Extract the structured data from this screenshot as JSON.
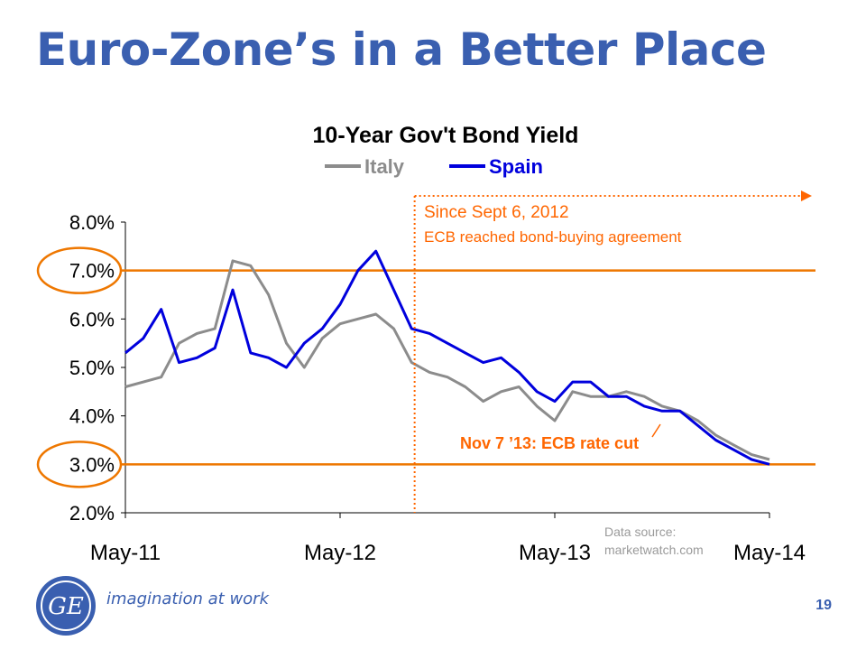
{
  "slide": {
    "title": "Euro-Zone’s in a Better Place",
    "tagline": "imagination at work",
    "page_number": "19",
    "logo_text": "GE"
  },
  "colors": {
    "title": "#3a5fb0",
    "italy": "#8c8c8c",
    "spain": "#0000dd",
    "annotation": "#ff6600",
    "reference_line": "#ee7700",
    "source": "#9a9a9a"
  },
  "icons": {
    "logo": "ge-monogram-icon",
    "arrow": "arrow-right-icon"
  },
  "chart_data": {
    "type": "line",
    "title": "10-Year Gov't Bond Yield",
    "legend_position": "top-center",
    "ylim": [
      2.0,
      8.0
    ],
    "yticks": [
      "2.0%",
      "3.0%",
      "4.0%",
      "5.0%",
      "6.0%",
      "7.0%",
      "8.0%"
    ],
    "xticks": [
      "May-11",
      "May-12",
      "May-13",
      "May-14"
    ],
    "x_range": [
      "2011-05",
      "2014-05"
    ],
    "grid": false,
    "reference_lines": [
      7.0,
      3.0
    ],
    "highlighted_ticks": [
      "7.0%",
      "3.0%"
    ],
    "series": [
      {
        "name": "Italy",
        "x": [
          "2011-05",
          "2011-07",
          "2011-08",
          "2011-09",
          "2011-10",
          "2011-11",
          "2011-12",
          "2012-01",
          "2012-02",
          "2012-03",
          "2012-04",
          "2012-05",
          "2012-06",
          "2012-07",
          "2012-08",
          "2012-09",
          "2012-10",
          "2012-11",
          "2012-12",
          "2013-01",
          "2013-02",
          "2013-03",
          "2013-04",
          "2013-05",
          "2013-06",
          "2013-07",
          "2013-08",
          "2013-09",
          "2013-10",
          "2013-11",
          "2013-12",
          "2014-01",
          "2014-02",
          "2014-03",
          "2014-04",
          "2014-05"
        ],
        "values": [
          4.6,
          4.8,
          5.5,
          5.7,
          5.8,
          7.2,
          7.1,
          6.5,
          5.5,
          5.0,
          5.6,
          5.9,
          6.0,
          6.1,
          5.8,
          5.1,
          4.9,
          4.8,
          4.6,
          4.3,
          4.5,
          4.6,
          4.2,
          3.9,
          4.5,
          4.4,
          4.4,
          4.5,
          4.4,
          4.2,
          4.1,
          3.9,
          3.6,
          3.4,
          3.2,
          3.1
        ]
      },
      {
        "name": "Spain",
        "x": [
          "2011-05",
          "2011-06",
          "2011-07",
          "2011-08",
          "2011-09",
          "2011-10",
          "2011-11",
          "2011-12",
          "2012-01",
          "2012-02",
          "2012-03",
          "2012-04",
          "2012-05",
          "2012-06",
          "2012-07",
          "2012-08",
          "2012-09",
          "2012-10",
          "2012-11",
          "2012-12",
          "2013-01",
          "2013-02",
          "2013-03",
          "2013-04",
          "2013-05",
          "2013-06",
          "2013-07",
          "2013-08",
          "2013-09",
          "2013-10",
          "2013-11",
          "2013-12",
          "2014-01",
          "2014-02",
          "2014-03",
          "2014-04",
          "2014-05"
        ],
        "values": [
          5.3,
          5.6,
          6.2,
          5.1,
          5.2,
          5.4,
          6.6,
          5.3,
          5.2,
          5.0,
          5.5,
          5.8,
          6.3,
          7.0,
          7.4,
          6.6,
          5.8,
          5.7,
          5.5,
          5.3,
          5.1,
          5.2,
          4.9,
          4.5,
          4.3,
          4.7,
          4.7,
          4.4,
          4.4,
          4.2,
          4.1,
          4.1,
          3.8,
          3.5,
          3.3,
          3.1,
          3.0
        ]
      }
    ],
    "annotations": [
      {
        "name": "Since Sept 6, 2012",
        "text": "ECB reached bond-buying agreement",
        "x": "2012-09-06"
      },
      {
        "text": "Nov 7 ’13: ECB rate cut",
        "x": "2013-11-07"
      }
    ],
    "source": [
      "Data source:",
      "marketwatch.com"
    ]
  }
}
